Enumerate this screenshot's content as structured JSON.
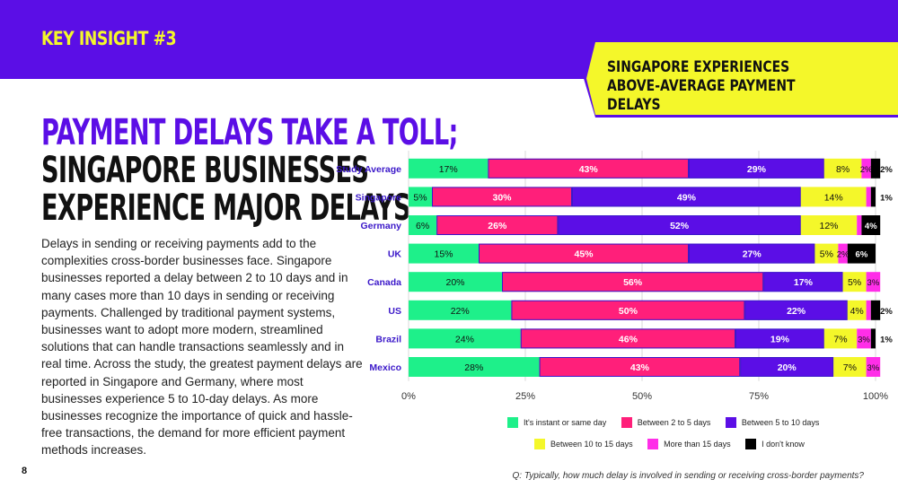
{
  "header": {
    "kicker": "KEY INSIGHT #3",
    "callout_line1": "SINGAPORE EXPERIENCES",
    "callout_line2": "ABOVE-AVERAGE PAYMENT DELAYS"
  },
  "headline": {
    "line1": "PAYMENT DELAYS TAKE A TOLL;",
    "line2": "SINGAPORE BUSINESSES",
    "line3": "EXPERIENCE MAJOR DELAYS"
  },
  "body": "Delays in sending or receiving payments add to the complexities cross-border businesses face. Singapore businesses reported a delay between 2 to 10 days and in many cases more than 10 days in sending or receiving payments. Challenged by traditional payment systems, businesses want to adopt more modern, streamlined solutions that can handle transactions seamlessly and in real time. Across the study, the greatest payment delays are reported in Singapore and Germany, where most businesses experience 5 to 10-day delays. As more businesses recognize the importance of quick and hassle-free transactions, the demand for more efficient payment methods increases.",
  "page_number": "8",
  "footnote": "Q: Typically, how much delay is involved in sending or receiving cross-border payments?",
  "colors": {
    "purple": "#5b0ee6",
    "yellow": "#f4f72a"
  },
  "chart_data": {
    "type": "bar",
    "orientation": "horizontal",
    "stacked": true,
    "categories": [
      "Study Average",
      "Singapore",
      "Germany",
      "UK",
      "Canada",
      "US",
      "Brazil",
      "Mexico"
    ],
    "series": [
      {
        "name": "It's instant or same day",
        "color": "#1ef08a",
        "values": [
          17,
          5,
          6,
          15,
          20,
          22,
          24,
          28
        ]
      },
      {
        "name": "Between 2 to 5 days",
        "color": "#ff1f7a",
        "values": [
          43,
          30,
          26,
          45,
          56,
          50,
          46,
          43
        ]
      },
      {
        "name": "Between 5 to 10 days",
        "color": "#5b0ee6",
        "values": [
          29,
          49,
          52,
          27,
          17,
          22,
          19,
          20
        ]
      },
      {
        "name": "Between 10 to 15 days",
        "color": "#f4f72a",
        "values": [
          8,
          14,
          12,
          5,
          5,
          4,
          7,
          7
        ]
      },
      {
        "name": "More than 15 days",
        "color": "#ff2ee8",
        "values": [
          2,
          1,
          1,
          2,
          3,
          1,
          3,
          3
        ]
      },
      {
        "name": "I don't know",
        "color": "#000000",
        "values": [
          2,
          1,
          4,
          6,
          0,
          2,
          1,
          0
        ]
      }
    ],
    "labels": [
      [
        "17%",
        "5%",
        "6%",
        "15%",
        "20%",
        "22%",
        "24%",
        "28%"
      ],
      [
        "43%",
        "30%",
        "26%",
        "45%",
        "56%",
        "50%",
        "46%",
        "43%"
      ],
      [
        "29%",
        "49%",
        "52%",
        "27%",
        "17%",
        "22%",
        "19%",
        "20%"
      ],
      [
        "8%",
        "14%",
        "12%",
        "5%",
        "5%",
        "4%",
        "7%",
        "7%"
      ],
      [
        "2%",
        "",
        "",
        "2%",
        "3%",
        "",
        "3%",
        "3%"
      ],
      [
        "2%",
        "1%",
        "4%",
        "6%",
        "",
        "2%",
        "1%",
        ""
      ]
    ],
    "outside_labels": [
      true,
      true,
      false,
      false,
      false,
      true,
      true,
      false
    ],
    "xticks": [
      "0%",
      "25%",
      "50%",
      "75%",
      "100%"
    ],
    "xlim": [
      0,
      100
    ],
    "legend_position": "bottom"
  }
}
